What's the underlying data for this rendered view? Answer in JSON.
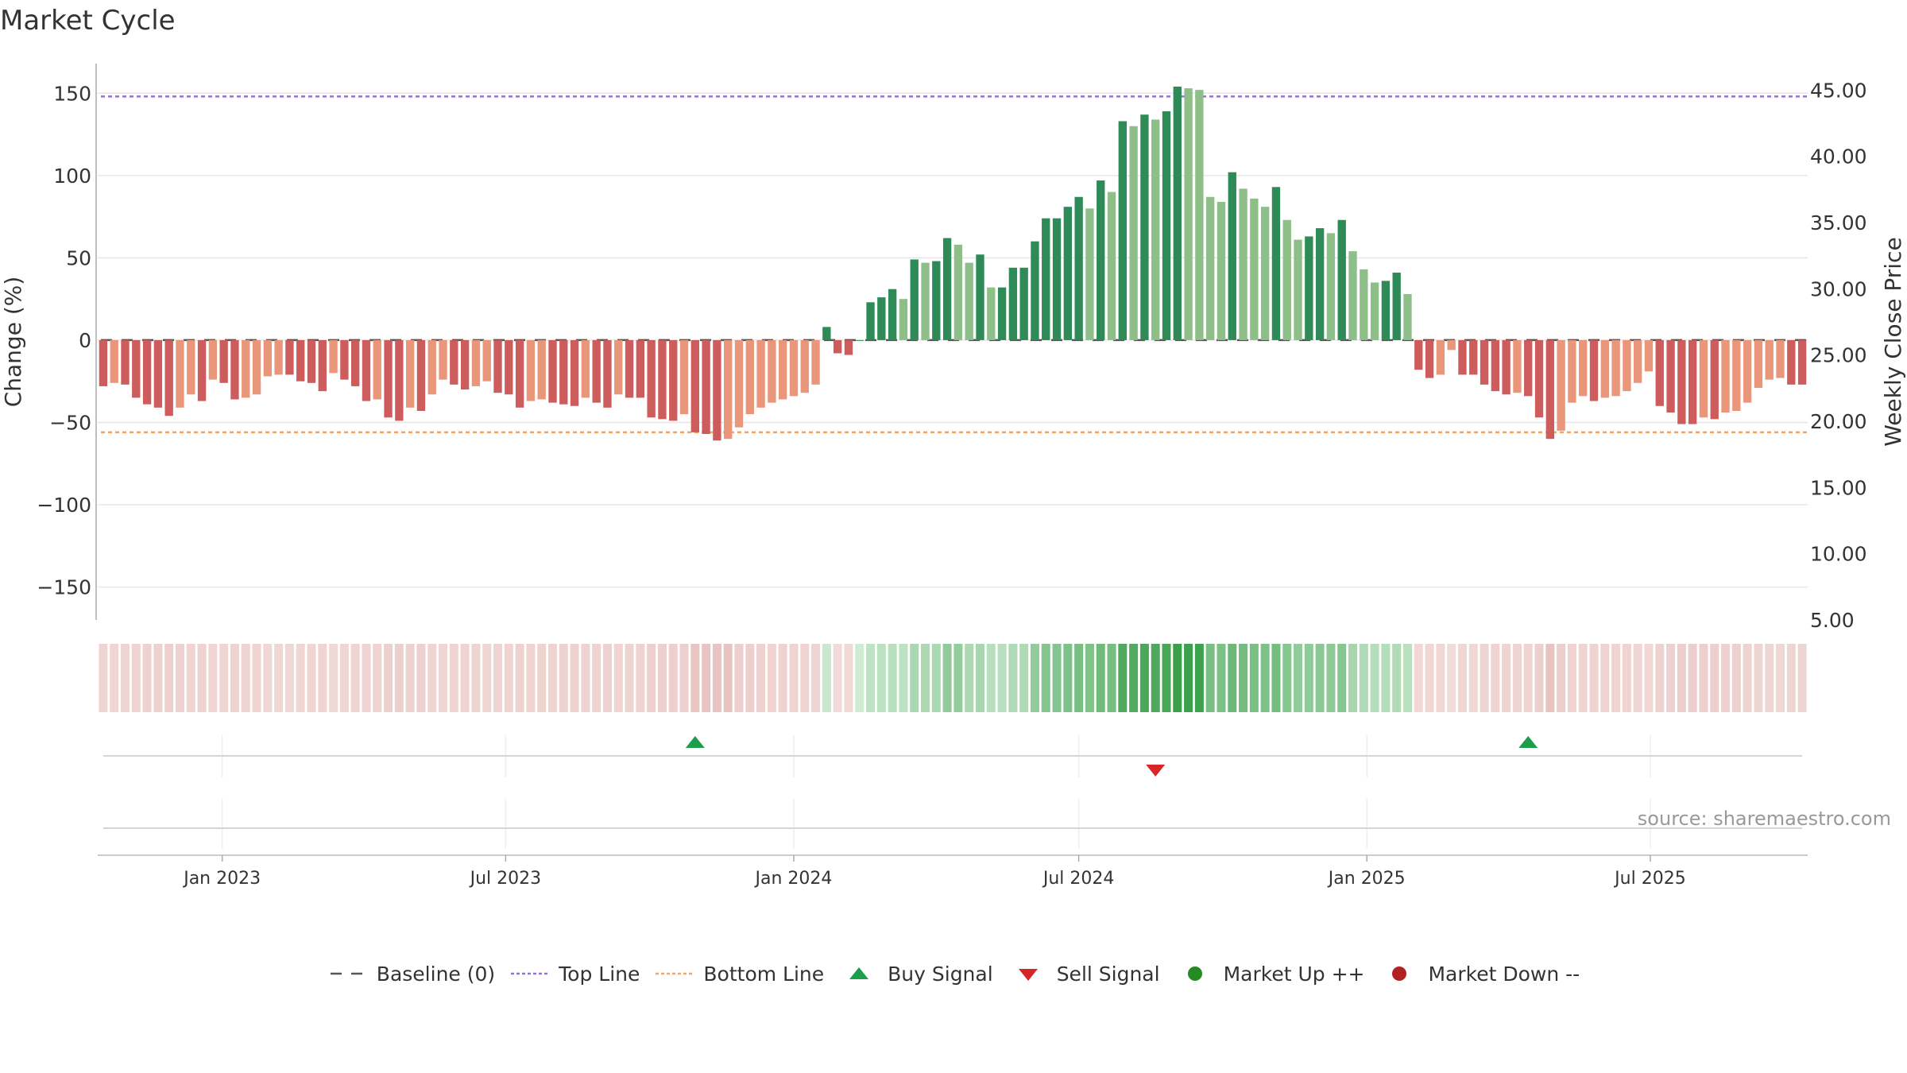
{
  "title": "Market Cycle",
  "source": "source: sharemaestro.com",
  "colors": {
    "up_dark": "#2e8b57",
    "up_light": "#8fbf88",
    "down_dark": "#cd5c5c",
    "down_light": "#e9967a",
    "top_line": "#9370db",
    "bottom_line": "#f4a460",
    "buy": "#1e9e4a",
    "sell": "#d62728",
    "market_up": "#228b22",
    "market_down": "#b22222",
    "baseline": "#555555"
  },
  "chart_data": {
    "type": "bar",
    "title": "Market Cycle",
    "ylabel": "Change (%)",
    "y2label": "Weekly Close Price",
    "ylim": [
      -170,
      168
    ],
    "y2lim": [
      5,
      47
    ],
    "yticks": [
      150,
      100,
      50,
      0,
      -50,
      -100,
      -150
    ],
    "ytick_labels": [
      "150",
      "100",
      "50",
      "0",
      "−50",
      "−100",
      "−150"
    ],
    "y2ticks": [
      45,
      40,
      35,
      30,
      25,
      20,
      15,
      10,
      5
    ],
    "y2tick_labels": [
      "45.00",
      "40.00",
      "35.00",
      "30.00",
      "25.00",
      "20.00",
      "15.00",
      "10.00",
      "5.00"
    ],
    "top_line": 148,
    "bottom_line": -56,
    "grid": true,
    "x_start": "2022-10-17",
    "x_end": "2025-09-22",
    "xticks": [
      {
        "date": "2023-01-01",
        "label": "Jan 2023"
      },
      {
        "date": "2023-07-01",
        "label": "Jul 2023"
      },
      {
        "date": "2024-01-01",
        "label": "Jan 2024"
      },
      {
        "date": "2024-07-01",
        "label": "Jul 2024"
      },
      {
        "date": "2025-01-01",
        "label": "Jan 2025"
      },
      {
        "date": "2025-07-01",
        "label": "Jul 2025"
      }
    ],
    "weekly_change": [
      -28,
      -26,
      -27,
      -35,
      -39,
      -41,
      -46,
      -41,
      -33,
      -37,
      -24,
      -26,
      -36,
      -35,
      -33,
      -22,
      -21,
      -21,
      -25,
      -26,
      -31,
      -20,
      -24,
      -28,
      -37,
      -36,
      -47,
      -49,
      -41,
      -43,
      -33,
      -24,
      -27,
      -30,
      -28,
      -25,
      -32,
      -33,
      -41,
      -37,
      -36,
      -38,
      -39,
      -40,
      -35,
      -38,
      -41,
      -33,
      -35,
      -35,
      -47,
      -48,
      -49,
      -45,
      -56,
      -57,
      -61,
      -60,
      -53,
      -45,
      -41,
      -38,
      -36,
      -34,
      -32,
      -27,
      8,
      -8,
      -9,
      0,
      23,
      26,
      31,
      25,
      49,
      47,
      48,
      62,
      58,
      47,
      52,
      32,
      32,
      44,
      44,
      60,
      74,
      74,
      81,
      87,
      80,
      97,
      90,
      133,
      130,
      137,
      134,
      139,
      154,
      153,
      152,
      87,
      84,
      102,
      92,
      86,
      81,
      93,
      73,
      61,
      63,
      68,
      65,
      73,
      54,
      43,
      35,
      36,
      41,
      28,
      -18,
      -23,
      -21,
      -6,
      -21,
      -21,
      -27,
      -31,
      -33,
      -32,
      -34,
      -47,
      -60,
      -55,
      -38,
      -34,
      -37,
      -35,
      -34,
      -31,
      -26,
      -19,
      -40,
      -44,
      -51,
      -51,
      -47,
      -48,
      -44,
      -43,
      -38,
      -29,
      -24,
      -23,
      -27,
      -27
    ],
    "signals": [
      {
        "type": "buy",
        "date": "2023-10-30"
      },
      {
        "type": "sell",
        "date": "2024-08-19"
      },
      {
        "type": "buy",
        "date": "2025-04-14"
      }
    ],
    "legend": [
      "Baseline (0)",
      "Top Line",
      "Bottom Line",
      "Buy Signal",
      "Sell Signal",
      "Market Up ++",
      "Market Down --"
    ],
    "legend_position": "bottom-center"
  }
}
